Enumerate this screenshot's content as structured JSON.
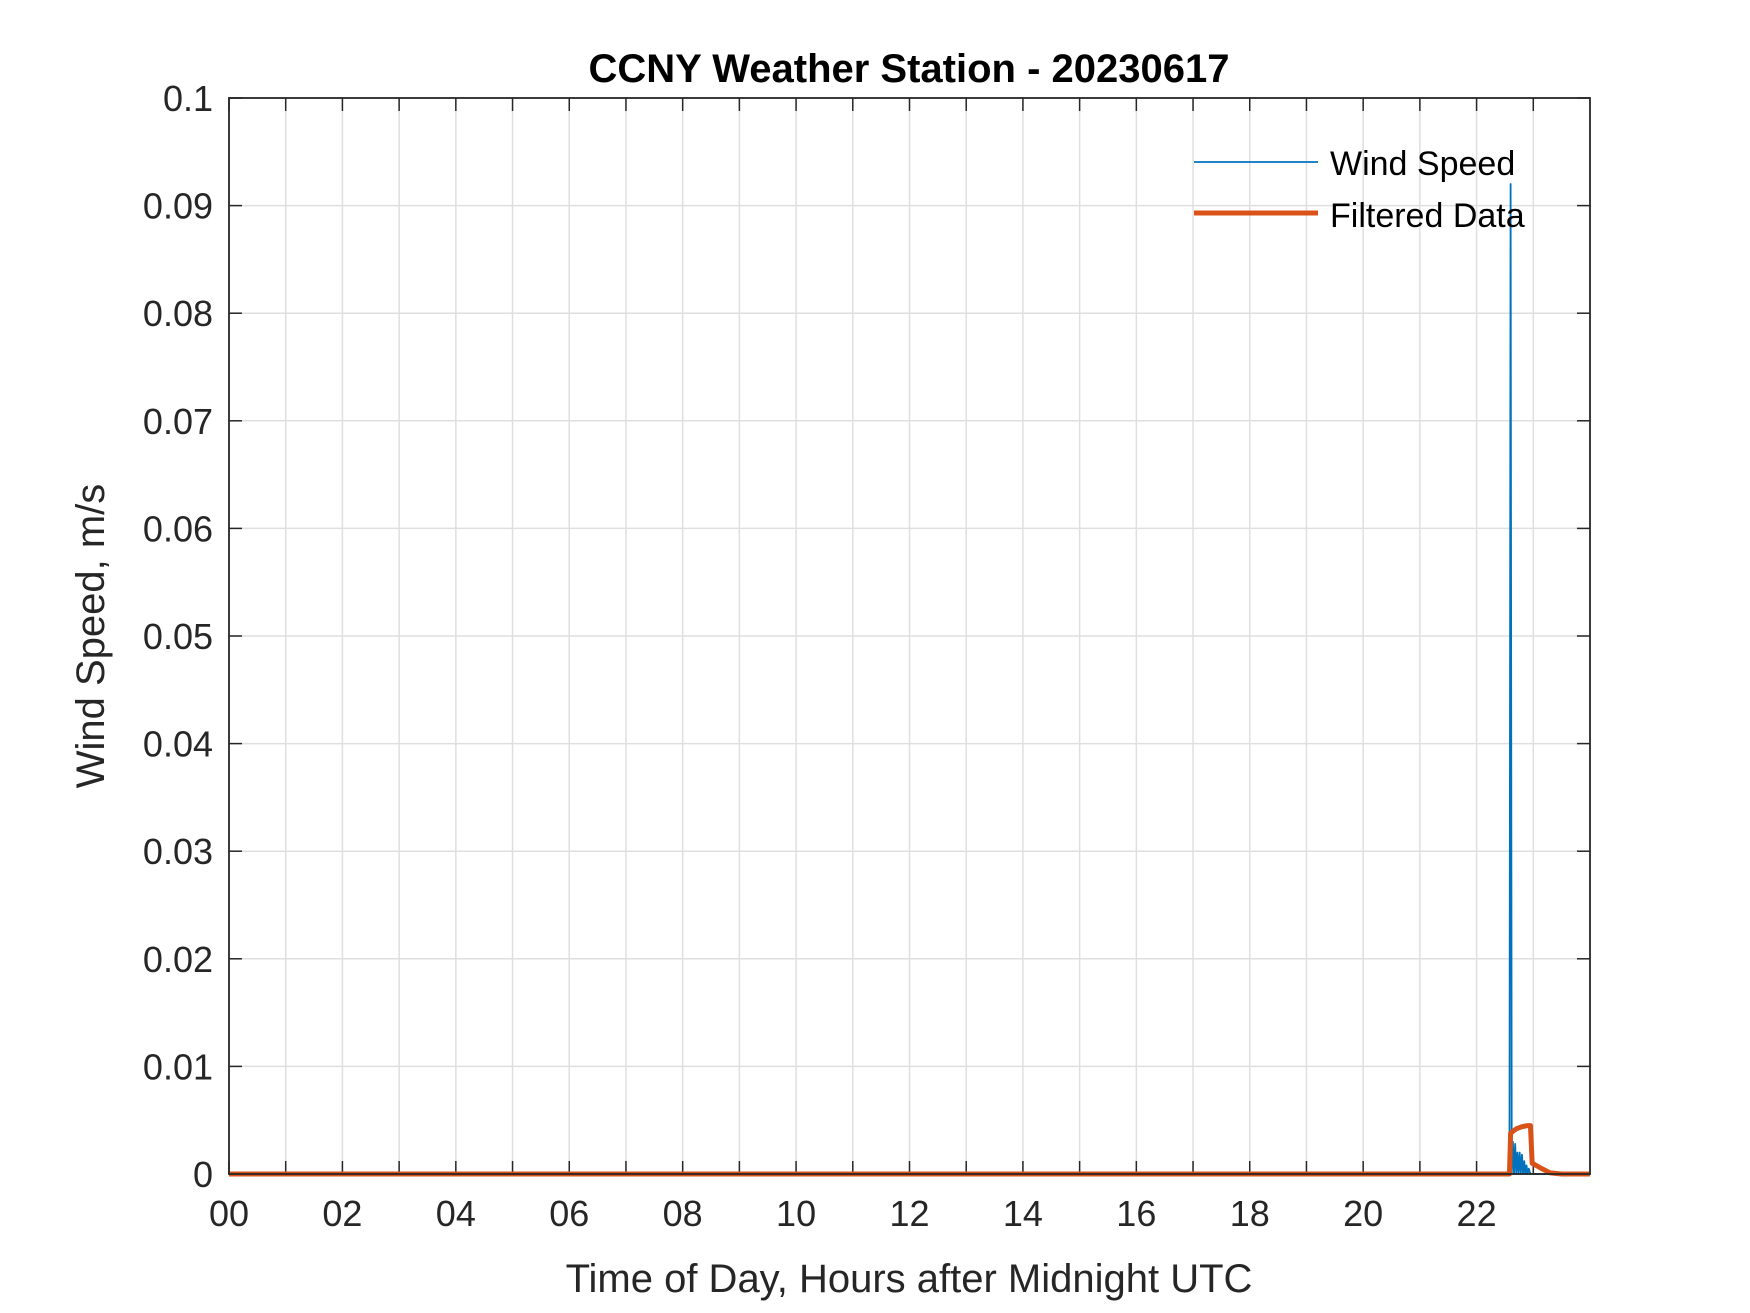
{
  "chart_data": {
    "type": "line",
    "title": "CCNY Weather Station - 20230617",
    "xlabel": "Time of Day, Hours after Midnight UTC",
    "ylabel": "Wind Speed, m/s",
    "xlim": [
      0,
      24
    ],
    "ylim": [
      0,
      0.1
    ],
    "x_tick_values": [
      0,
      2,
      4,
      6,
      8,
      10,
      12,
      14,
      16,
      18,
      20,
      22
    ],
    "x_tick_labels": [
      "00",
      "02",
      "04",
      "06",
      "08",
      "10",
      "12",
      "14",
      "16",
      "18",
      "20",
      "22"
    ],
    "x_minor_ticks": [
      1,
      3,
      5,
      7,
      9,
      11,
      13,
      15,
      17,
      19,
      21,
      23
    ],
    "y_tick_values": [
      0,
      0.01,
      0.02,
      0.03,
      0.04,
      0.05,
      0.06,
      0.07,
      0.08,
      0.09,
      0.1
    ],
    "y_tick_labels": [
      "0",
      "0.01",
      "0.02",
      "0.03",
      "0.04",
      "0.05",
      "0.06",
      "0.07",
      "0.08",
      "0.09",
      "0.1"
    ],
    "grid": true,
    "legend_position": "top-right",
    "series": [
      {
        "name": "Wind Speed",
        "color": "#0072BD",
        "x": [
          0,
          22.58,
          22.6,
          22.62,
          22.64,
          22.66,
          22.68,
          22.7,
          22.72,
          22.74,
          22.76,
          22.78,
          22.8,
          22.82,
          22.84,
          22.86,
          22.88,
          22.9,
          22.92,
          22.95,
          23.0,
          24
        ],
        "y": [
          0,
          0,
          0.092,
          0,
          0.003,
          0,
          0.0028,
          0,
          0.002,
          0,
          0.002,
          0,
          0.0018,
          0,
          0.0012,
          0,
          0.0008,
          0,
          0.0005,
          0,
          0,
          0
        ]
      },
      {
        "name": "Filtered Data",
        "color": "#D95319",
        "x": [
          0,
          22.58,
          22.6,
          22.7,
          22.8,
          22.9,
          22.95,
          22.98,
          23.05,
          23.15,
          23.3,
          23.5,
          24
        ],
        "y": [
          0,
          0,
          0.0038,
          0.0042,
          0.0044,
          0.0045,
          0.0045,
          0.001,
          0.0008,
          0.0005,
          0.0001,
          0,
          0
        ]
      }
    ]
  }
}
